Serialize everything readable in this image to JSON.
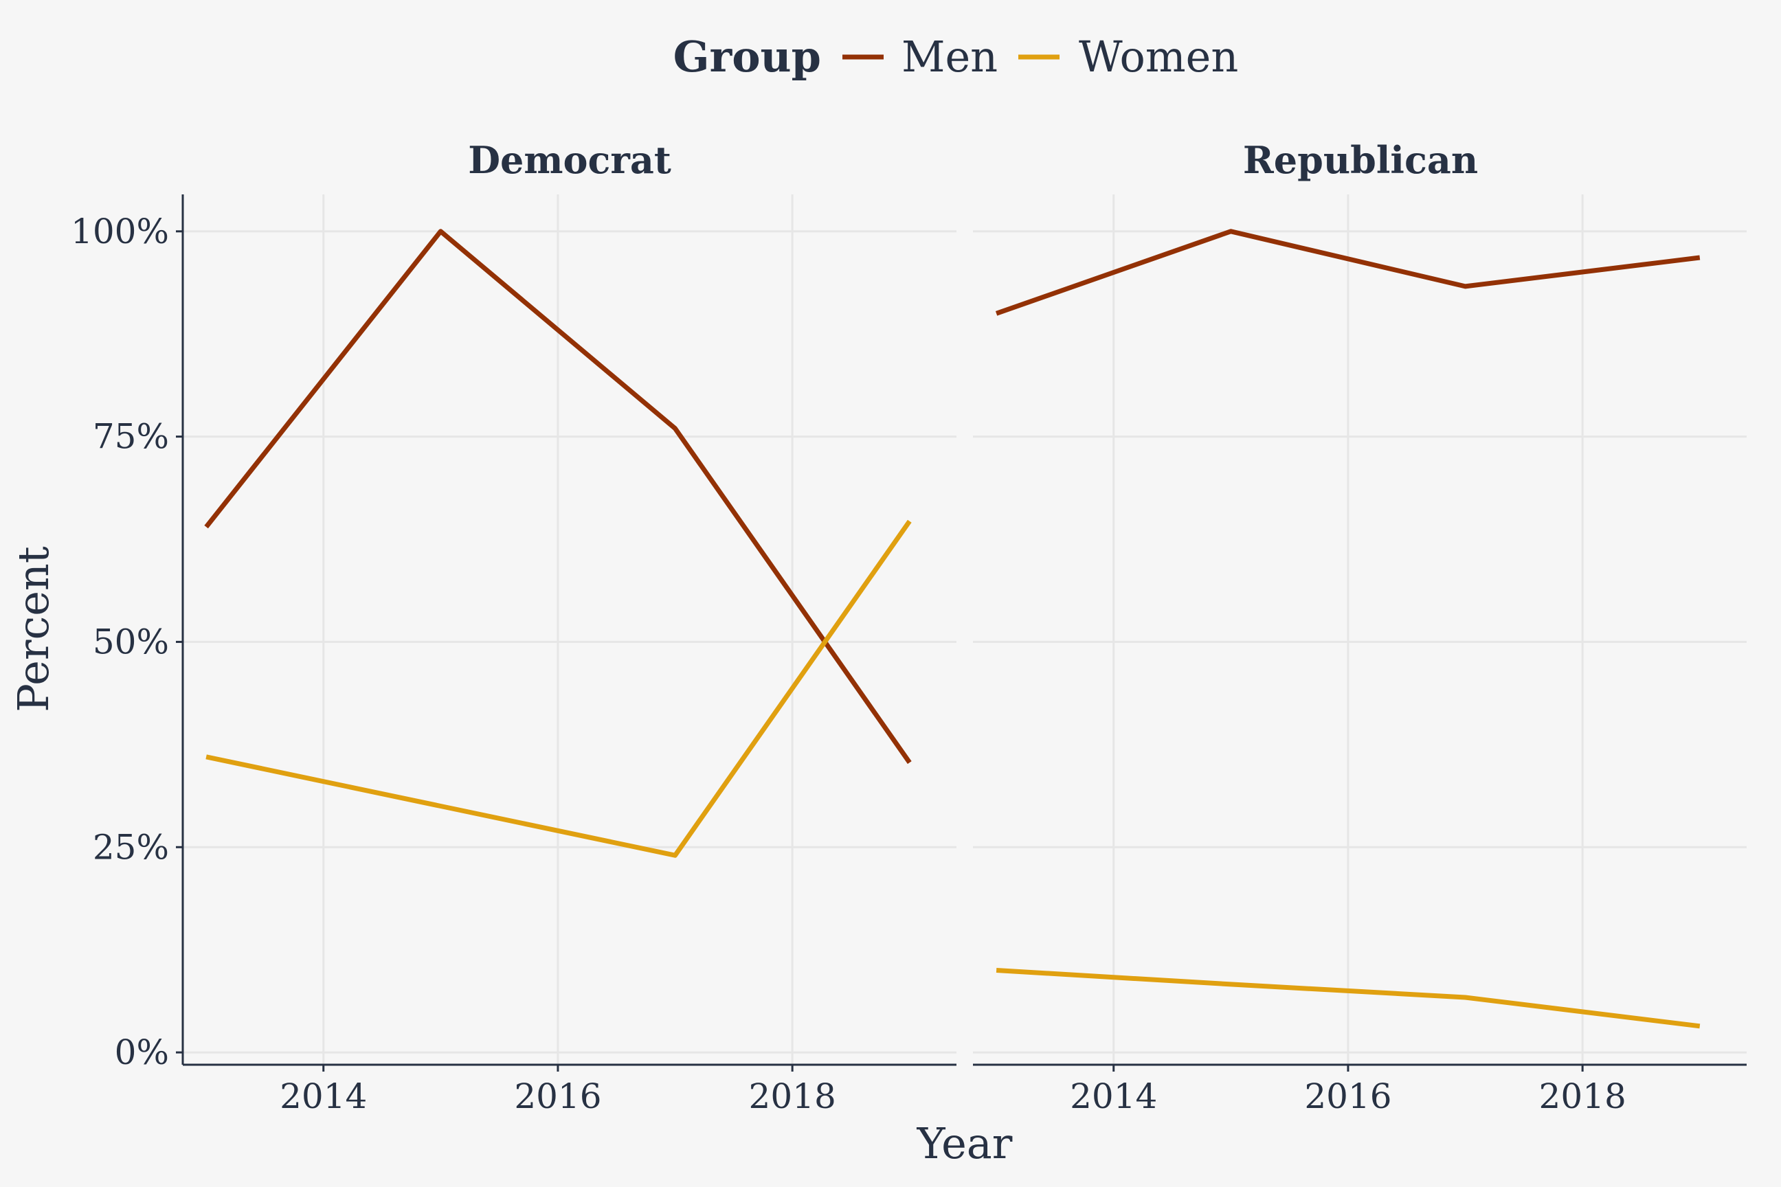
{
  "chart_data": {
    "type": "line",
    "xlabel": "Year",
    "ylabel": "Percent",
    "xlim": [
      2012.8,
      2019.4
    ],
    "ylim": [
      -1.5,
      104.5
    ],
    "x_ticks": [
      2014,
      2016,
      2018
    ],
    "x_tick_labels": [
      "2014",
      "2016",
      "2018"
    ],
    "y_ticks": [
      0,
      25,
      50,
      75,
      100
    ],
    "y_tick_labels": [
      "0%",
      "25%",
      "50%",
      "75%",
      "100%"
    ],
    "grid": true,
    "legend": {
      "title": "Group",
      "position": "top",
      "entries": [
        {
          "label": "Men",
          "color": "#933105"
        },
        {
          "label": "Women",
          "color": "#e0a010"
        }
      ]
    },
    "panels": [
      {
        "title": "Democrat",
        "series": [
          {
            "name": "Men",
            "color": "#933105",
            "x": [
              2013,
              2015,
              2017,
              2019
            ],
            "y": [
              64,
              100,
              76,
              35.3
            ]
          },
          {
            "name": "Women",
            "color": "#e0a010",
            "x": [
              2013,
              2015,
              2017,
              2019
            ],
            "y": [
              36,
              30,
              24,
              64.7
            ]
          }
        ]
      },
      {
        "title": "Republican",
        "series": [
          {
            "name": "Men",
            "color": "#933105",
            "x": [
              2013,
              2015,
              2017,
              2019
            ],
            "y": [
              90,
              100,
              93.3,
              96.8
            ]
          },
          {
            "name": "Women",
            "color": "#e0a010",
            "x": [
              2013,
              2015,
              2017,
              2019
            ],
            "y": [
              10,
              8.3,
              6.7,
              3.2
            ]
          }
        ]
      }
    ]
  }
}
